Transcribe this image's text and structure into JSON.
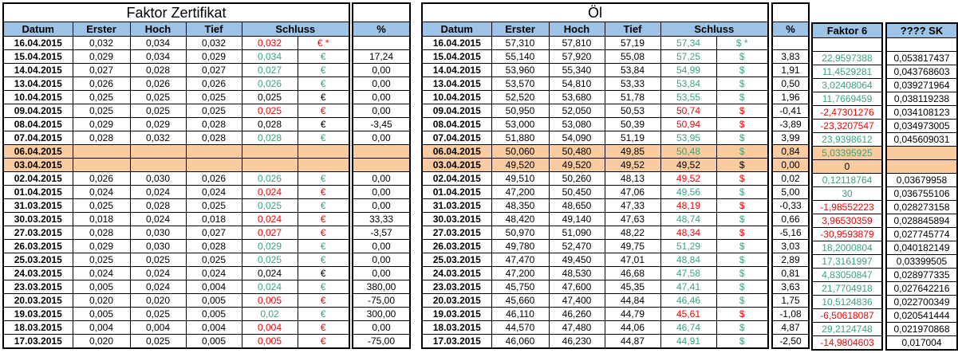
{
  "colors": {
    "green": "#3AA37C",
    "red": "#FF0000",
    "black": "#000000",
    "header_blue": "#9DC3E6",
    "highlight_orange": "#FACB9E"
  },
  "left_table": {
    "title": "Faktor Zertifikat",
    "headers": {
      "datum": "Datum",
      "erster": "Erster",
      "hoch": "Hoch",
      "tief": "Tief",
      "schluss": "Schluss",
      "pct": "%"
    },
    "rows": [
      {
        "date": "16.04.2015",
        "erster": "0,032",
        "hoch": "0,034",
        "tief": "0,032",
        "schluss": "0,032",
        "cur": "€ *",
        "color": "red",
        "pct": "",
        "highlight": false
      },
      {
        "date": "15.04.2015",
        "erster": "0,029",
        "hoch": "0,034",
        "tief": "0,029",
        "schluss": "0,034",
        "cur": "€",
        "color": "green",
        "pct": "17,24",
        "highlight": false
      },
      {
        "date": "14.04.2015",
        "erster": "0,027",
        "hoch": "0,028",
        "tief": "0,027",
        "schluss": "0,027",
        "cur": "€",
        "color": "green",
        "pct": "0,00",
        "highlight": false
      },
      {
        "date": "13.04.2015",
        "erster": "0,026",
        "hoch": "0,026",
        "tief": "0,026",
        "schluss": "0,026",
        "cur": "€",
        "color": "green",
        "pct": "0,00",
        "highlight": false
      },
      {
        "date": "10.04.2015",
        "erster": "0,025",
        "hoch": "0,025",
        "tief": "0,025",
        "schluss": "0,025",
        "cur": "€",
        "color": "black",
        "pct": "0,00",
        "highlight": false
      },
      {
        "date": "09.04.2015",
        "erster": "0,025",
        "hoch": "0,025",
        "tief": "0,025",
        "schluss": "0,025",
        "cur": "€",
        "color": "red",
        "pct": "0,00",
        "highlight": false
      },
      {
        "date": "08.04.2015",
        "erster": "0,029",
        "hoch": "0,029",
        "tief": "0,028",
        "schluss": "0,028",
        "cur": "€",
        "color": "black",
        "pct": "-3,45",
        "highlight": false
      },
      {
        "date": "07.04.2015",
        "erster": "0,028",
        "hoch": "0,032",
        "tief": "0,028",
        "schluss": "0,028",
        "cur": "€",
        "color": "green",
        "pct": "0,00",
        "highlight": false
      },
      {
        "date": "06.04.2015",
        "erster": "",
        "hoch": "",
        "tief": "",
        "schluss": "",
        "cur": "",
        "color": "black",
        "pct": "",
        "highlight": true
      },
      {
        "date": "03.04.2015",
        "erster": "",
        "hoch": "",
        "tief": "",
        "schluss": "",
        "cur": "",
        "color": "black",
        "pct": "",
        "highlight": true
      },
      {
        "date": "02.04.2015",
        "erster": "0,026",
        "hoch": "0,030",
        "tief": "0,026",
        "schluss": "0,026",
        "cur": "€",
        "color": "green",
        "pct": "0,00",
        "highlight": false
      },
      {
        "date": "01.04.2015",
        "erster": "0,024",
        "hoch": "0,024",
        "tief": "0,024",
        "schluss": "0,024",
        "cur": "€",
        "color": "red",
        "pct": "0,00",
        "highlight": false
      },
      {
        "date": "31.03.2015",
        "erster": "0,025",
        "hoch": "0,028",
        "tief": "0,025",
        "schluss": "0,025",
        "cur": "€",
        "color": "green",
        "pct": "0,00",
        "highlight": false
      },
      {
        "date": "30.03.2015",
        "erster": "0,018",
        "hoch": "0,024",
        "tief": "0,018",
        "schluss": "0,024",
        "cur": "€",
        "color": "red",
        "pct": "33,33",
        "highlight": false
      },
      {
        "date": "27.03.2015",
        "erster": "0,028",
        "hoch": "0,030",
        "tief": "0,027",
        "schluss": "0,027",
        "cur": "€",
        "color": "red",
        "pct": "-3,57",
        "highlight": false
      },
      {
        "date": "26.03.2015",
        "erster": "0,029",
        "hoch": "0,030",
        "tief": "0,028",
        "schluss": "0,029",
        "cur": "€",
        "color": "green",
        "pct": "0,00",
        "highlight": false
      },
      {
        "date": "25.03.2015",
        "erster": "0,025",
        "hoch": "0,025",
        "tief": "0,025",
        "schluss": "0,025",
        "cur": "€",
        "color": "green",
        "pct": "0,00",
        "highlight": false
      },
      {
        "date": "24.03.2015",
        "erster": "0,024",
        "hoch": "0,024",
        "tief": "0,024",
        "schluss": "0,024",
        "cur": "€",
        "color": "black",
        "pct": "0,00",
        "highlight": false
      },
      {
        "date": "23.03.2015",
        "erster": "0,005",
        "hoch": "0,024",
        "tief": "0,004",
        "schluss": "0,024",
        "cur": "€",
        "color": "green",
        "pct": "380,00",
        "highlight": false
      },
      {
        "date": "20.03.2015",
        "erster": "0,020",
        "hoch": "0,020",
        "tief": "0,005",
        "schluss": "0,005",
        "cur": "€",
        "color": "red",
        "pct": "-75,00",
        "highlight": false
      },
      {
        "date": "19.03.2015",
        "erster": "0,005",
        "hoch": "0,025",
        "tief": "0,005",
        "schluss": "0,02",
        "cur": "€",
        "color": "green",
        "pct": "300,00",
        "highlight": false
      },
      {
        "date": "18.03.2015",
        "erster": "0,004",
        "hoch": "0,004",
        "tief": "0,004",
        "schluss": "0,004",
        "cur": "€",
        "color": "red",
        "pct": "0,00",
        "highlight": false
      },
      {
        "date": "17.03.2015",
        "erster": "0,020",
        "hoch": "0,025",
        "tief": "0,005",
        "schluss": "0,005",
        "cur": "€",
        "color": "red",
        "pct": "-75,00",
        "highlight": false
      }
    ]
  },
  "right_table": {
    "title": "Öl",
    "headers": {
      "datum": "Datum",
      "erster": "Erster",
      "hoch": "Hoch",
      "tief": "Tief",
      "schluss": "Schluss",
      "pct": "%",
      "faktor6": "Faktor 6",
      "sk": "???? SK"
    },
    "rows": [
      {
        "date": "16.04.2015",
        "erster": "57,310",
        "hoch": "57,810",
        "tief": "57,19",
        "schluss": "57,34",
        "cur": "$ *",
        "color": "green",
        "pct": "",
        "f6": "",
        "f6_color": "black",
        "sk": "",
        "highlight": false
      },
      {
        "date": "15.04.2015",
        "erster": "55,140",
        "hoch": "57,920",
        "tief": "55,08",
        "schluss": "57,25",
        "cur": "$",
        "color": "green",
        "pct": "3,83",
        "f6": "22,9597388",
        "f6_color": "green",
        "sk": "0,053817437",
        "highlight": false
      },
      {
        "date": "14.04.2015",
        "erster": "53,960",
        "hoch": "55,340",
        "tief": "53,84",
        "schluss": "54,99",
        "cur": "$",
        "color": "green",
        "pct": "1,91",
        "f6": "11,4529281",
        "f6_color": "green",
        "sk": "0,043768603",
        "highlight": false
      },
      {
        "date": "13.04.2015",
        "erster": "53,570",
        "hoch": "54,810",
        "tief": "53,33",
        "schluss": "53,84",
        "cur": "$",
        "color": "green",
        "pct": "0,50",
        "f6": "3,02408064",
        "f6_color": "green",
        "sk": "0,039271964",
        "highlight": false
      },
      {
        "date": "10.04.2015",
        "erster": "52,520",
        "hoch": "53,680",
        "tief": "51,78",
        "schluss": "53,55",
        "cur": "$",
        "color": "green",
        "pct": "1,96",
        "f6": "11,7669459",
        "f6_color": "green",
        "sk": "0,038119238",
        "highlight": false
      },
      {
        "date": "09.04.2015",
        "erster": "50,950",
        "hoch": "52,050",
        "tief": "50,53",
        "schluss": "50,74",
        "cur": "$",
        "color": "red",
        "pct": "-0,41",
        "f6": "-2,47301276",
        "f6_color": "red",
        "sk": "0,034108123",
        "highlight": false
      },
      {
        "date": "08.04.2015",
        "erster": "53,000",
        "hoch": "53,080",
        "tief": "50,39",
        "schluss": "50,94",
        "cur": "$",
        "color": "red",
        "pct": "-3,89",
        "f6": "-23,3207547",
        "f6_color": "red",
        "sk": "0,034973005",
        "highlight": false
      },
      {
        "date": "07.04.2015",
        "erster": "51,880",
        "hoch": "54,090",
        "tief": "51,19",
        "schluss": "53,95",
        "cur": "$",
        "color": "green",
        "pct": "3,99",
        "f6": "23,9398612",
        "f6_color": "green",
        "sk": "0,045609031",
        "highlight": false
      },
      {
        "date": "06.04.2015",
        "erster": "50,060",
        "hoch": "50,480",
        "tief": "49,85",
        "schluss": "50,48",
        "cur": "$",
        "color": "green",
        "pct": "0,84",
        "f6": "5,03395925",
        "f6_color": "green",
        "sk": "",
        "highlight": true
      },
      {
        "date": "03.04.2015",
        "erster": "49,520",
        "hoch": "49,520",
        "tief": "49,52",
        "schluss": "49,52",
        "cur": "$",
        "color": "black",
        "pct": "0,00",
        "f6": "0",
        "f6_color": "black",
        "sk": "",
        "highlight": true
      },
      {
        "date": "02.04.2015",
        "erster": "49,510",
        "hoch": "50,260",
        "tief": "48,13",
        "schluss": "49,52",
        "cur": "$",
        "color": "red",
        "pct": "0,02",
        "f6": "0,12118764",
        "f6_color": "green",
        "sk": "0,03679958",
        "highlight": false
      },
      {
        "date": "01.04.2015",
        "erster": "47,200",
        "hoch": "50,450",
        "tief": "47,06",
        "schluss": "49,56",
        "cur": "$",
        "color": "green",
        "pct": "5,00",
        "f6": "30",
        "f6_color": "green",
        "sk": "0,036755106",
        "highlight": false
      },
      {
        "date": "31.03.2015",
        "erster": "48,350",
        "hoch": "48,650",
        "tief": "47,33",
        "schluss": "48,19",
        "cur": "$",
        "color": "red",
        "pct": "-0,33",
        "f6": "-1,98552223",
        "f6_color": "red",
        "sk": "0,028273158",
        "highlight": false
      },
      {
        "date": "30.03.2015",
        "erster": "48,420",
        "hoch": "49,140",
        "tief": "47,63",
        "schluss": "48,74",
        "cur": "$",
        "color": "green",
        "pct": "0,66",
        "f6": "3,96530359",
        "f6_color": "red",
        "sk": "0,028845894",
        "highlight": false
      },
      {
        "date": "27.03.2015",
        "erster": "50,970",
        "hoch": "51,090",
        "tief": "48,22",
        "schluss": "48,34",
        "cur": "$",
        "color": "red",
        "pct": "-5,16",
        "f6": "-30,9593879",
        "f6_color": "red",
        "sk": "0,027745774",
        "highlight": false
      },
      {
        "date": "26.03.2015",
        "erster": "49,780",
        "hoch": "52,470",
        "tief": "49,75",
        "schluss": "51,29",
        "cur": "$",
        "color": "green",
        "pct": "3,03",
        "f6": "18,2000804",
        "f6_color": "green",
        "sk": "0,040182149",
        "highlight": false
      },
      {
        "date": "25.03.2015",
        "erster": "47,470",
        "hoch": "49,450",
        "tief": "47,01",
        "schluss": "48,84",
        "cur": "$",
        "color": "green",
        "pct": "2,89",
        "f6": "17,3161997",
        "f6_color": "green",
        "sk": "0,03399505",
        "highlight": false
      },
      {
        "date": "24.03.2015",
        "erster": "47,200",
        "hoch": "48,530",
        "tief": "46,68",
        "schluss": "47,58",
        "cur": "$",
        "color": "green",
        "pct": "0,81",
        "f6": "4,83050847",
        "f6_color": "green",
        "sk": "0,028977335",
        "highlight": false
      },
      {
        "date": "23.03.2015",
        "erster": "45,750",
        "hoch": "47,600",
        "tief": "45,35",
        "schluss": "47,41",
        "cur": "$",
        "color": "green",
        "pct": "3,63",
        "f6": "21,7704918",
        "f6_color": "green",
        "sk": "0,027642216",
        "highlight": false
      },
      {
        "date": "20.03.2015",
        "erster": "45,660",
        "hoch": "47,400",
        "tief": "44,84",
        "schluss": "46,46",
        "cur": "$",
        "color": "green",
        "pct": "1,75",
        "f6": "10,5124836",
        "f6_color": "green",
        "sk": "0,022700349",
        "highlight": false
      },
      {
        "date": "19.03.2015",
        "erster": "46,110",
        "hoch": "46,260",
        "tief": "44,79",
        "schluss": "45,61",
        "cur": "$",
        "color": "red",
        "pct": "-1,08",
        "f6": "-6,50618087",
        "f6_color": "red",
        "sk": "0,020541444",
        "highlight": false
      },
      {
        "date": "18.03.2015",
        "erster": "44,570",
        "hoch": "47,480",
        "tief": "44,06",
        "schluss": "46,74",
        "cur": "$",
        "color": "green",
        "pct": "4,87",
        "f6": "29,2124748",
        "f6_color": "green",
        "sk": "0,021970868",
        "highlight": false
      },
      {
        "date": "17.03.2015",
        "erster": "46,060",
        "hoch": "46,230",
        "tief": "44,87",
        "schluss": "44,91",
        "cur": "$",
        "color": "green",
        "pct": "-2,50",
        "f6": "-14,9804603",
        "f6_color": "red",
        "sk": "0,017004",
        "highlight": false
      }
    ]
  }
}
